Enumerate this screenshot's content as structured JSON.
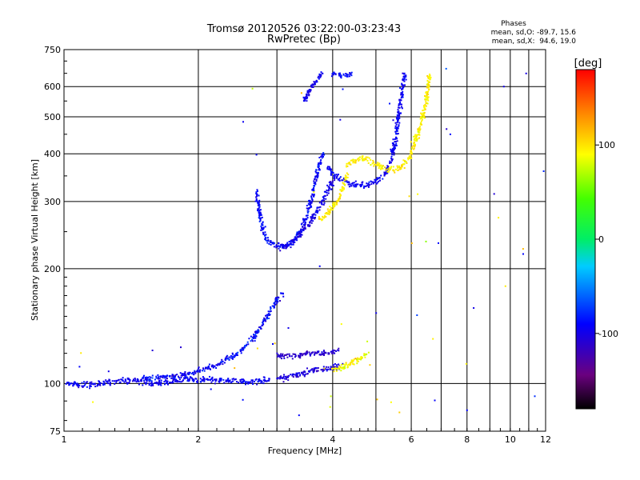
{
  "chart_data": {
    "type": "scatter",
    "title": "Tromsø 20120526 03:22:00-03:23:43",
    "subtitle": "RwPretec (Bp)",
    "xlabel": "Frequency [MHz]",
    "ylabel": "Stationary phase Virtual Height [km]",
    "x_scale": "log",
    "y_scale": "log",
    "xlim": [
      1,
      12
    ],
    "ylim": [
      75,
      750
    ],
    "x_ticks": [
      1,
      2,
      4,
      6,
      8,
      10,
      12
    ],
    "y_ticks": [
      75,
      100,
      200,
      300,
      400,
      500,
      600,
      750
    ],
    "grid": true,
    "phases_box": {
      "title": "Phases",
      "line1": "mean, sd,O: -89.7, 15.6",
      "line2": "mean, sd,X:  94.6, 19.0"
    },
    "colorbar": {
      "label": "[deg]",
      "range": [
        -180,
        180
      ],
      "ticks": [
        100,
        0,
        -100
      ],
      "colormap": "rainbow: black-purple-blue-cyan-green-yellow-orange-red"
    },
    "traces": [
      {
        "name": "",
        "phase_mean": -95,
        "phase_sd": 12,
        "points": [
          [
            1.0,
            100
          ],
          [
            1.1,
            99
          ],
          [
            1.2,
            100
          ],
          [
            1.3,
            101
          ],
          [
            1.4,
            102
          ],
          [
            1.5,
            101
          ],
          [
            1.6,
            100
          ],
          [
            1.7,
            101
          ],
          [
            1.8,
            102
          ],
          [
            1.9,
            103
          ],
          [
            2.0,
            102
          ],
          [
            2.1,
            103
          ],
          [
            2.2,
            102
          ],
          [
            2.3,
            102
          ],
          [
            2.4,
            102
          ],
          [
            2.5,
            101
          ],
          [
            2.6,
            101
          ],
          [
            2.7,
            101
          ],
          [
            2.8,
            102
          ],
          [
            2.9,
            103
          ]
        ]
      },
      {
        "name": "",
        "phase_mean": -90,
        "phase_sd": 20,
        "points": [
          [
            1.5,
            103
          ],
          [
            1.7,
            104
          ],
          [
            1.9,
            106
          ],
          [
            2.0,
            108
          ],
          [
            2.1,
            110
          ],
          [
            2.2,
            112
          ],
          [
            2.3,
            115
          ],
          [
            2.4,
            118
          ],
          [
            2.5,
            122
          ],
          [
            2.6,
            128
          ],
          [
            2.7,
            135
          ],
          [
            2.8,
            145
          ],
          [
            2.9,
            155
          ],
          [
            3.0,
            165
          ],
          [
            3.1,
            172
          ]
        ]
      },
      {
        "name": "",
        "phase_mean": -110,
        "phase_sd": 12,
        "points": [
          [
            3.0,
            118
          ],
          [
            3.2,
            118
          ],
          [
            3.4,
            119
          ],
          [
            3.6,
            120
          ],
          [
            3.8,
            120
          ],
          [
            4.0,
            121
          ],
          [
            4.1,
            122
          ]
        ]
      },
      {
        "name": "",
        "phase_mean": -105,
        "phase_sd": 12,
        "points": [
          [
            3.0,
            103
          ],
          [
            3.2,
            104
          ],
          [
            3.4,
            106
          ],
          [
            3.6,
            108
          ],
          [
            3.8,
            109
          ],
          [
            4.0,
            110
          ],
          [
            4.2,
            112
          ]
        ]
      },
      {
        "name": "",
        "phase_mean": 90,
        "phase_sd": 15,
        "points": [
          [
            4.0,
            108
          ],
          [
            4.2,
            110
          ],
          [
            4.4,
            113
          ],
          [
            4.6,
            116
          ],
          [
            4.8,
            120
          ]
        ]
      },
      {
        "name": "",
        "phase_mean": -90,
        "phase_sd": 15,
        "points": [
          [
            2.7,
            320
          ],
          [
            2.75,
            275
          ],
          [
            2.8,
            250
          ],
          [
            2.85,
            240
          ],
          [
            2.9,
            233
          ],
          [
            3.0,
            230
          ],
          [
            3.1,
            230
          ],
          [
            3.2,
            232
          ],
          [
            3.3,
            240
          ],
          [
            3.4,
            252
          ],
          [
            3.5,
            275
          ],
          [
            3.6,
            310
          ],
          [
            3.7,
            360
          ],
          [
            3.8,
            400
          ]
        ]
      },
      {
        "name": "",
        "phase_mean": -100,
        "phase_sd": 12,
        "points": [
          [
            3.0,
            225
          ],
          [
            3.2,
            230
          ],
          [
            3.4,
            248
          ],
          [
            3.6,
            270
          ],
          [
            3.8,
            300
          ],
          [
            4.0,
            340
          ]
        ]
      },
      {
        "name": "",
        "phase_mean": -100,
        "phase_sd": 10,
        "points": [
          [
            3.45,
            540
          ],
          [
            3.5,
            570
          ],
          [
            3.6,
            600
          ],
          [
            3.7,
            625
          ],
          [
            3.8,
            650
          ]
        ]
      },
      {
        "name": "",
        "phase_mean": -95,
        "phase_sd": 12,
        "points": [
          [
            3.9,
            370
          ],
          [
            4.0,
            352
          ],
          [
            4.2,
            340
          ],
          [
            4.4,
            332
          ],
          [
            4.6,
            330
          ],
          [
            4.8,
            332
          ],
          [
            5.0,
            338
          ],
          [
            5.2,
            350
          ],
          [
            5.4,
            380
          ],
          [
            5.5,
            420
          ],
          [
            5.6,
            480
          ],
          [
            5.7,
            560
          ],
          [
            5.8,
            650
          ]
        ]
      },
      {
        "name": "",
        "phase_mean": 95,
        "phase_sd": 12,
        "points": [
          [
            3.7,
            270
          ],
          [
            3.8,
            272
          ],
          [
            3.9,
            280
          ],
          [
            4.0,
            290
          ],
          [
            4.1,
            300
          ],
          [
            4.2,
            320
          ],
          [
            4.3,
            350
          ]
        ]
      },
      {
        "name": "",
        "phase_mean": 95,
        "phase_sd": 15,
        "points": [
          [
            4.3,
            370
          ],
          [
            4.5,
            385
          ],
          [
            4.7,
            390
          ],
          [
            4.9,
            380
          ],
          [
            5.1,
            370
          ],
          [
            5.3,
            365
          ],
          [
            5.5,
            362
          ],
          [
            5.7,
            370
          ],
          [
            5.9,
            385
          ],
          [
            6.1,
            420
          ],
          [
            6.3,
            480
          ],
          [
            6.5,
            560
          ],
          [
            6.6,
            650
          ]
        ]
      },
      {
        "name": "",
        "phase_mean": -90,
        "phase_sd": 15,
        "points": [
          [
            4.0,
            645
          ],
          [
            4.2,
            640
          ],
          [
            4.4,
            645
          ]
        ]
      }
    ]
  }
}
